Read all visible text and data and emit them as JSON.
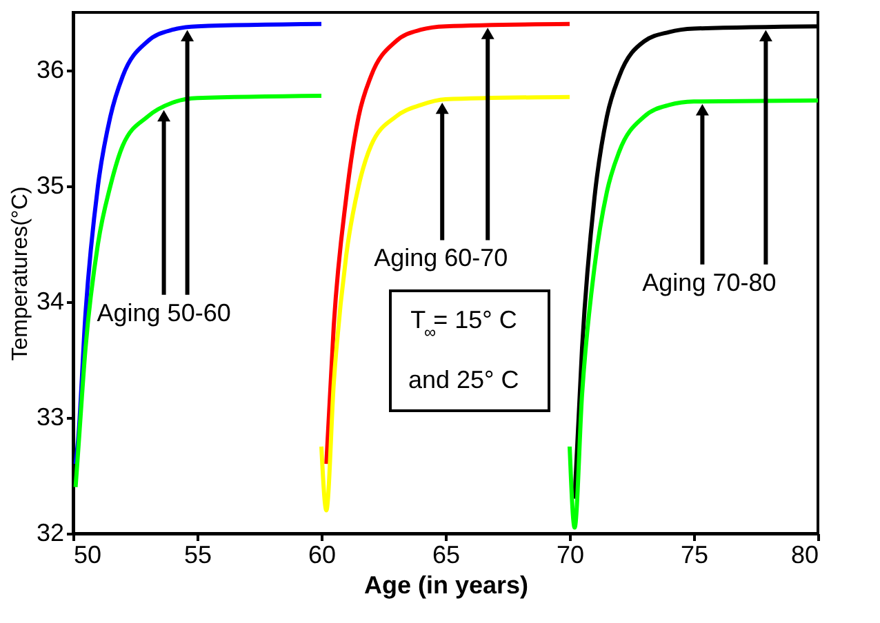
{
  "chart_data": {
    "type": "line",
    "xlabel": "Age  (in years)",
    "ylabel": "Temperatures(°C)",
    "xlim": [
      50,
      80
    ],
    "xticks": [
      50,
      55,
      60,
      65,
      70,
      75,
      80
    ],
    "ylim": [
      32,
      36.5
    ],
    "yticks": [
      32,
      33,
      34,
      35,
      36
    ],
    "series": [
      {
        "color": "#0000ff",
        "x": [
          50.1,
          50.2,
          50.5,
          51,
          51.5,
          52,
          53,
          54,
          55,
          60
        ],
        "values": [
          32.6,
          32.8,
          33.9,
          35.0,
          35.6,
          35.95,
          36.25,
          36.35,
          36.38,
          36.4
        ]
      },
      {
        "color": "#00ff00",
        "x": [
          50.1,
          50.2,
          50.5,
          51,
          51.5,
          52,
          53,
          54,
          55,
          60
        ],
        "values": [
          32.4,
          32.7,
          33.6,
          34.5,
          35.0,
          35.35,
          35.6,
          35.72,
          35.76,
          35.78
        ]
      },
      {
        "color": "#ff0000",
        "x": [
          60.2,
          60.5,
          61,
          61.5,
          62,
          63,
          64,
          65,
          70
        ],
        "values": [
          32.6,
          33.8,
          34.9,
          35.6,
          35.95,
          36.25,
          36.35,
          36.38,
          36.4
        ]
      },
      {
        "color": "#ffff00",
        "x": [
          60,
          60.2,
          60.5,
          61,
          61.5,
          62,
          63,
          64,
          65,
          70
        ],
        "values": [
          32.75,
          32.2,
          33.3,
          34.4,
          35.0,
          35.35,
          35.6,
          35.7,
          35.75,
          35.77
        ]
      },
      {
        "color": "#000000",
        "x": [
          70.2,
          70.5,
          71,
          71.5,
          72,
          73,
          74,
          75,
          80
        ],
        "values": [
          32.3,
          33.6,
          34.9,
          35.6,
          35.95,
          36.25,
          36.33,
          36.36,
          36.38
        ]
      },
      {
        "color": "#00ff00",
        "x": [
          70,
          70.2,
          70.5,
          71,
          71.5,
          72,
          73,
          74,
          75,
          80
        ],
        "values": [
          32.75,
          32.05,
          33.2,
          34.3,
          34.95,
          35.3,
          35.6,
          35.7,
          35.73,
          35.74
        ]
      }
    ],
    "annotations": [
      {
        "text": "Aging 50-60",
        "x": 54.6,
        "y": 36.37
      },
      {
        "text": "Aging 60-70",
        "x": 66.7,
        "y": 36.39
      },
      {
        "text": "Aging 70-80",
        "x": 77.9,
        "y": 36.37
      },
      "T$_{∞}$= 15° C",
      "and 25° C"
    ]
  }
}
